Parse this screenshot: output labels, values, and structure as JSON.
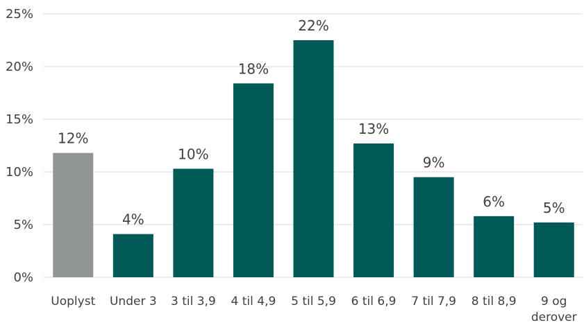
{
  "chart_data": {
    "type": "bar",
    "title": "",
    "xlabel": "",
    "ylabel": "",
    "categories": [
      "Uoplyst",
      "Under 3",
      "3 til 3,9",
      "4 til 4,9",
      "5 til 5,9",
      "6 til 6,9",
      "7 til 7,9",
      "8 til 8,9",
      "9 og derover"
    ],
    "values": [
      11.8,
      4.1,
      10.3,
      18.4,
      22.5,
      12.7,
      9.5,
      5.8,
      5.2
    ],
    "data_labels": [
      "12%",
      "4%",
      "10%",
      "18%",
      "22%",
      "13%",
      "9%",
      "6%",
      "5%"
    ],
    "ylim": [
      0,
      25
    ],
    "yticks": [
      0,
      5,
      10,
      15,
      20,
      25
    ],
    "ytick_labels": [
      "0%",
      "5%",
      "10%",
      "15%",
      "20%",
      "25%"
    ],
    "grid": true,
    "legend": "none",
    "colors": {
      "default": "#005a57",
      "highlight": "#8f9695",
      "highlight_index": 0
    }
  }
}
